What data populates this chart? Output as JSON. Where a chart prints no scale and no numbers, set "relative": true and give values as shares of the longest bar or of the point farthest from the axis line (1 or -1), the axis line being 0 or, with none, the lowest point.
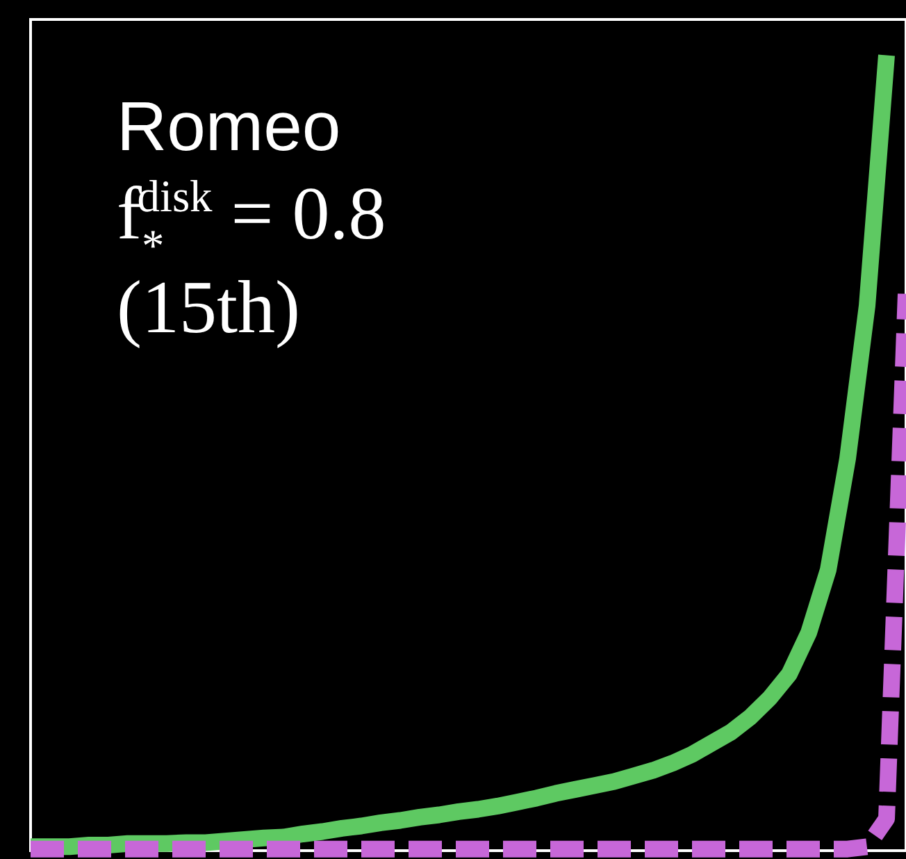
{
  "chart_data": {
    "type": "line",
    "relative": true,
    "marker": "none",
    "categories": [
      null,
      null,
      null,
      null,
      null,
      null,
      null,
      null,
      null,
      null,
      null,
      null,
      null,
      null,
      null,
      null,
      null,
      null,
      null,
      null,
      null,
      null,
      null,
      null,
      null,
      null,
      null,
      null,
      null,
      null,
      null,
      null,
      null,
      null,
      null,
      null,
      null,
      null,
      null,
      null,
      null,
      null,
      null,
      null,
      null,
      null
    ],
    "series": [
      {
        "color": "#5ec962",
        "line_style": "solid",
        "values": [
          0.005,
          0.005,
          0.005,
          0.007,
          0.007,
          0.009,
          0.009,
          0.009,
          0.01,
          0.01,
          0.012,
          0.014,
          0.016,
          0.017,
          0.021,
          0.024,
          0.028,
          0.031,
          0.035,
          0.038,
          0.042,
          0.045,
          0.049,
          0.052,
          0.056,
          0.061,
          0.066,
          0.072,
          0.077,
          0.082,
          0.087,
          0.094,
          0.101,
          0.11,
          0.121,
          0.135,
          0.149,
          0.168,
          0.192,
          0.222,
          0.274,
          0.353,
          0.493,
          0.685,
          1,
          null
        ]
      },
      {
        "color": "#c767d8",
        "line_style": "dashed",
        "values": [
          0.002,
          0.002,
          0.002,
          0.002,
          0.002,
          0.002,
          0.002,
          0.002,
          0.002,
          0.002,
          0.002,
          0.002,
          0.002,
          0.002,
          0.002,
          0.002,
          0.002,
          0.002,
          0.002,
          0.002,
          0.002,
          0.002,
          0.002,
          0.002,
          0.002,
          0.002,
          0.002,
          0.002,
          0.002,
          0.002,
          0.002,
          0.002,
          0.002,
          0.002,
          0.002,
          0.002,
          0.002,
          0.002,
          0.002,
          0.002,
          0.002,
          0.002,
          0.002,
          0.005,
          0.04,
          0.7
        ]
      }
    ],
    "annotations": [
      "Romeo",
      "f$_{*}$$^{disk}$ = 0.8",
      "(15th)"
    ]
  }
}
